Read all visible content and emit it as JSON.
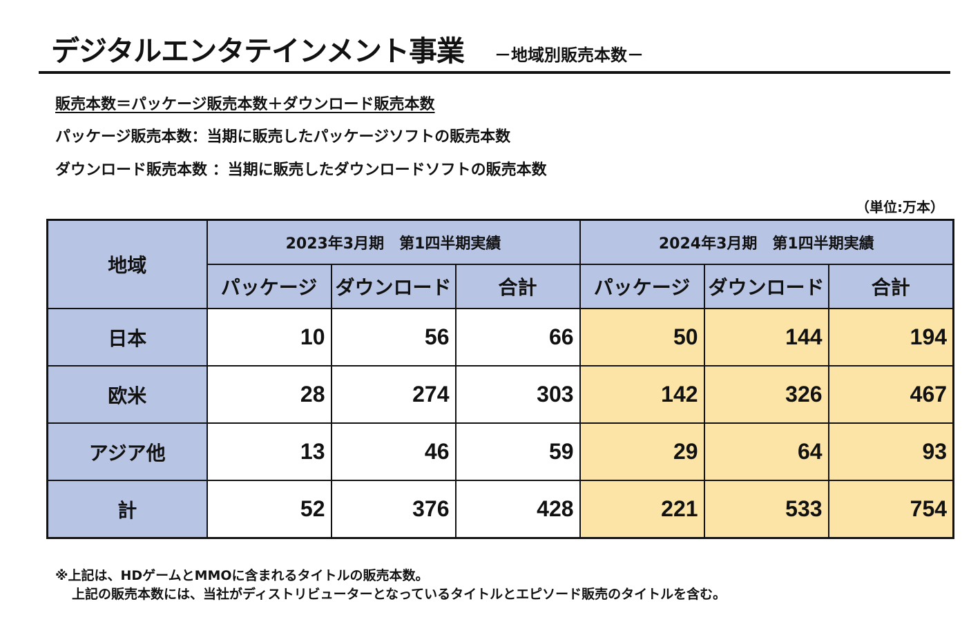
{
  "header": {
    "title": "デジタルエンタテインメント事業",
    "subtitle": "－地域別販売本数－"
  },
  "definitions": [
    "販売本数＝パッケージ販売本数＋ダウンロード販売本数",
    "パッケージ販売本数：当期に販売したパッケージソフトの販売本数",
    "ダウンロード販売本数 ：当期に販売したダウンロードソフトの販売本数"
  ],
  "unit_note": "（単位:万本）",
  "table": {
    "region_header": "地域",
    "periods": [
      "2023年3月期　第1四半期実績",
      "2024年3月期　第1四半期実績"
    ],
    "subheaders": [
      "パッケージ",
      "ダウンロード",
      "合計",
      "パッケージ",
      "ダウンロード",
      "合計"
    ],
    "rows": [
      {
        "region": "日本",
        "values": [
          "10",
          "56",
          "66",
          "50",
          "144",
          "194"
        ]
      },
      {
        "region": "欧米",
        "values": [
          "28",
          "274",
          "303",
          "142",
          "326",
          "467"
        ]
      },
      {
        "region": "アジア他",
        "values": [
          "13",
          "46",
          "59",
          "29",
          "64",
          "93"
        ]
      },
      {
        "region": "計",
        "values": [
          "52",
          "376",
          "428",
          "221",
          "533",
          "754"
        ]
      }
    ]
  },
  "notes": [
    "※上記は、HDゲームとMMOに含まれるタイトルの販売本数。",
    "上記の販売本数には、当社がディストリビューターとなっているタイトルとエピソード販売のタイトルを含む。"
  ],
  "colors": {
    "header_fill": "#b7c4e3",
    "current_period_fill": "#fbe4a6",
    "prior_period_fill": "#ffffff",
    "border": "#111111"
  }
}
